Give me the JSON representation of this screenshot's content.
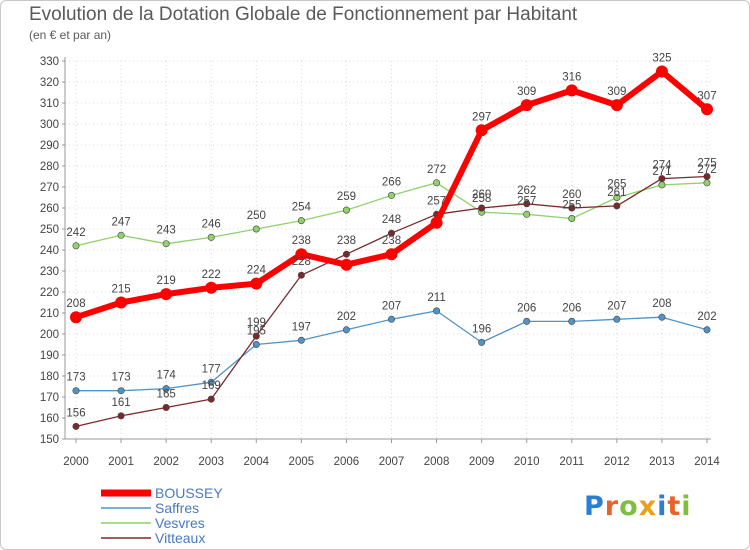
{
  "chart_data": {
    "type": "line",
    "title": "Evolution de la Dotation Globale de Fonctionnement par Habitant",
    "subtitle": "(en € et par an)",
    "x": [
      "2000",
      "2001",
      "2002",
      "2003",
      "2004",
      "2005",
      "2006",
      "2007",
      "2008",
      "2009",
      "2010",
      "2011",
      "2012",
      "2013",
      "2014"
    ],
    "ylim": [
      150,
      330
    ],
    "yticks": [
      150,
      160,
      170,
      180,
      190,
      200,
      210,
      220,
      230,
      240,
      250,
      260,
      270,
      280,
      290,
      300,
      310,
      320,
      330
    ],
    "grid": true,
    "legend_position": "bottom-left",
    "series": [
      {
        "name": "BOUSSEY",
        "color": "#ff0000",
        "values": [
          208,
          215,
          219,
          222,
          224,
          238,
          233,
          238,
          253,
          297,
          309,
          316,
          309,
          325,
          307
        ],
        "labels": [
          "208",
          "215",
          "219",
          "222",
          "224",
          "238",
          "",
          "238",
          "",
          "297",
          "309",
          "316",
          "309",
          "325",
          "307"
        ]
      },
      {
        "name": "Saffres",
        "color": "#4f94c8",
        "values": [
          173,
          173,
          174,
          177,
          195,
          197,
          202,
          207,
          211,
          196,
          206,
          206,
          207,
          208,
          202
        ],
        "labels": [
          "173",
          "173",
          "174",
          "177",
          "195",
          "197",
          "202",
          "207",
          "211",
          "196",
          "206",
          "206",
          "207",
          "208",
          "202"
        ]
      },
      {
        "name": "Vesvres",
        "color": "#8fd16c",
        "values": [
          242,
          247,
          243,
          246,
          250,
          254,
          259,
          266,
          272,
          258,
          257,
          255,
          265,
          271,
          272
        ],
        "labels": [
          "242",
          "247",
          "243",
          "246",
          "250",
          "254",
          "259",
          "266",
          "272",
          "258",
          "257",
          "255",
          "265",
          "271",
          "272"
        ]
      },
      {
        "name": "Vitteaux",
        "color": "#7a2a2a",
        "values": [
          156,
          161,
          165,
          169,
          199,
          228,
          238,
          248,
          257,
          260,
          262,
          260,
          261,
          274,
          275
        ],
        "labels": [
          "156",
          "161",
          "165",
          "169",
          "199",
          "228",
          "238",
          "248",
          "257",
          "260",
          "262",
          "260",
          "261",
          "274",
          "275"
        ]
      }
    ]
  },
  "logo": {
    "text": "Proxiti",
    "letters": [
      "P",
      "r",
      "o",
      "x",
      "i",
      "t",
      "i"
    ],
    "colors": [
      "#2a7fd4",
      "#e8632a",
      "#7fbf3f",
      "#e8a21a",
      "#2a7fd4",
      "#e8632a",
      "#7fbf3f"
    ]
  }
}
